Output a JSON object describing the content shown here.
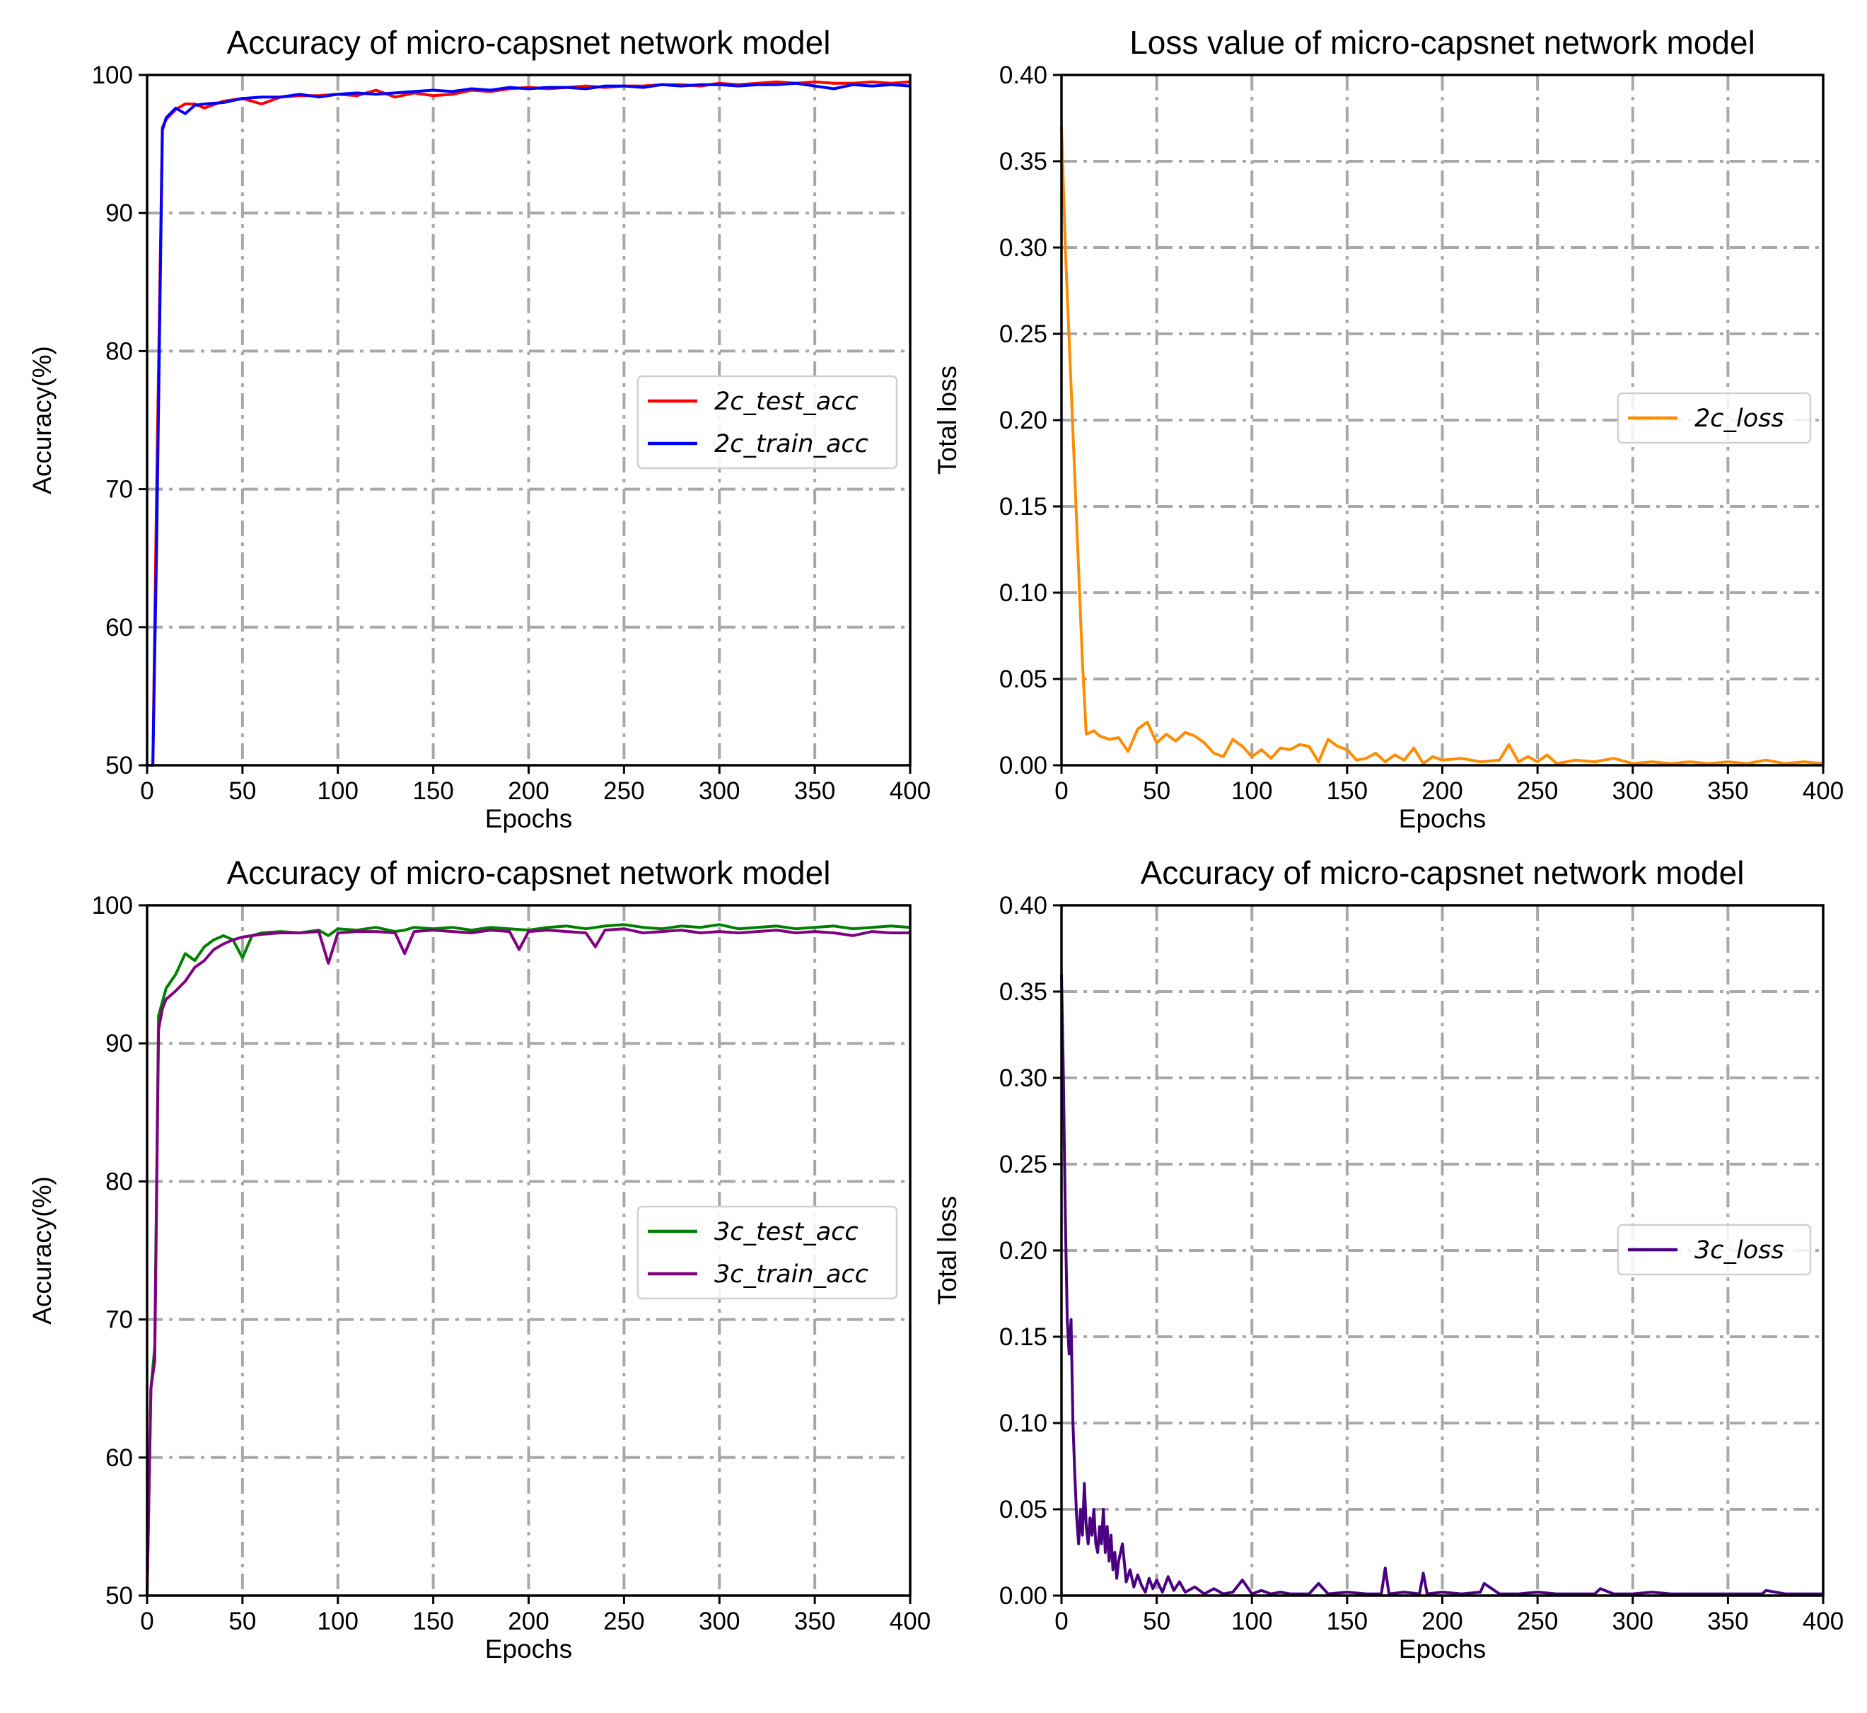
{
  "chart_data": [
    {
      "type": "line",
      "title": "Accuracy of micro-capsnet network model",
      "xlabel": "Epochs",
      "ylabel": "Accuracy(%)",
      "xlim": [
        0,
        400
      ],
      "ylim": [
        50,
        100
      ],
      "xticks": [
        0,
        50,
        100,
        150,
        200,
        250,
        300,
        350,
        400
      ],
      "yticks": [
        50,
        60,
        70,
        80,
        90,
        100
      ],
      "ytick_labels": [
        "50",
        "60",
        "70",
        "80",
        "90",
        "100"
      ],
      "grid": true,
      "legend_position": "center-right",
      "series": [
        {
          "name": "2c_test_acc",
          "color": "#ff0000",
          "x": [
            0,
            3,
            5,
            8,
            10,
            15,
            20,
            25,
            30,
            40,
            50,
            60,
            70,
            80,
            90,
            100,
            110,
            120,
            130,
            140,
            150,
            160,
            170,
            180,
            190,
            200,
            210,
            220,
            230,
            240,
            250,
            260,
            270,
            280,
            290,
            300,
            310,
            320,
            330,
            340,
            350,
            360,
            370,
            380,
            390,
            400
          ],
          "values": [
            50,
            50,
            70,
            96.2,
            96.8,
            97.5,
            97.9,
            97.9,
            97.6,
            98.1,
            98.3,
            97.9,
            98.4,
            98.5,
            98.5,
            98.6,
            98.5,
            98.9,
            98.4,
            98.7,
            98.5,
            98.6,
            98.9,
            98.8,
            99.0,
            99.1,
            99.0,
            99.1,
            99.2,
            99.1,
            99.2,
            99.2,
            99.3,
            99.3,
            99.2,
            99.4,
            99.3,
            99.4,
            99.5,
            99.4,
            99.5,
            99.4,
            99.4,
            99.5,
            99.4,
            99.5
          ]
        },
        {
          "name": "2c_train_acc",
          "color": "#0000ff",
          "x": [
            0,
            3,
            5,
            8,
            10,
            15,
            20,
            25,
            30,
            40,
            50,
            60,
            70,
            80,
            90,
            100,
            110,
            120,
            130,
            140,
            150,
            160,
            170,
            180,
            190,
            200,
            210,
            220,
            230,
            240,
            250,
            260,
            270,
            280,
            290,
            300,
            310,
            320,
            330,
            340,
            350,
            360,
            370,
            380,
            390,
            400
          ],
          "values": [
            50,
            50,
            66,
            96.0,
            96.9,
            97.6,
            97.2,
            97.8,
            97.9,
            98.0,
            98.3,
            98.4,
            98.4,
            98.6,
            98.4,
            98.6,
            98.7,
            98.6,
            98.7,
            98.8,
            98.9,
            98.8,
            99.0,
            98.9,
            99.1,
            99.0,
            99.1,
            99.1,
            99.0,
            99.2,
            99.2,
            99.1,
            99.3,
            99.2,
            99.3,
            99.3,
            99.2,
            99.3,
            99.3,
            99.4,
            99.2,
            99.0,
            99.3,
            99.2,
            99.3,
            99.2
          ]
        }
      ]
    },
    {
      "type": "line",
      "title": "Loss value of micro-capsnet network model",
      "xlabel": "Epochs",
      "ylabel": "Total loss",
      "xlim": [
        0,
        400
      ],
      "ylim": [
        0,
        0.4
      ],
      "xticks": [
        0,
        50,
        100,
        150,
        200,
        250,
        300,
        350,
        400
      ],
      "yticks": [
        0,
        0.05,
        0.1,
        0.15,
        0.2,
        0.25,
        0.3,
        0.35,
        0.4
      ],
      "ytick_labels": [
        "0.00",
        "0.05",
        "0.10",
        "0.15",
        "0.20",
        "0.25",
        "0.30",
        "0.35",
        "0.40"
      ],
      "grid": true,
      "legend_position": "center-right",
      "series": [
        {
          "name": "2c_loss",
          "color": "#ff8c00",
          "x": [
            0,
            2,
            5,
            8,
            11,
            13,
            17,
            20,
            25,
            30,
            35,
            40,
            45,
            50,
            55,
            60,
            65,
            70,
            75,
            80,
            85,
            90,
            95,
            100,
            105,
            110,
            115,
            120,
            125,
            130,
            135,
            140,
            145,
            150,
            155,
            160,
            165,
            170,
            175,
            180,
            185,
            190,
            195,
            200,
            210,
            220,
            230,
            235,
            240,
            245,
            250,
            255,
            260,
            270,
            280,
            290,
            300,
            310,
            320,
            330,
            340,
            350,
            360,
            370,
            380,
            390,
            400
          ],
          "values": [
            0.37,
            0.3,
            0.22,
            0.14,
            0.06,
            0.018,
            0.02,
            0.017,
            0.015,
            0.016,
            0.008,
            0.021,
            0.025,
            0.013,
            0.018,
            0.014,
            0.019,
            0.017,
            0.013,
            0.007,
            0.005,
            0.015,
            0.011,
            0.005,
            0.009,
            0.004,
            0.01,
            0.009,
            0.012,
            0.011,
            0.002,
            0.015,
            0.011,
            0.009,
            0.003,
            0.004,
            0.007,
            0.002,
            0.006,
            0.003,
            0.01,
            0.001,
            0.005,
            0.003,
            0.004,
            0.002,
            0.003,
            0.012,
            0.002,
            0.005,
            0.002,
            0.006,
            0.001,
            0.003,
            0.002,
            0.004,
            0.001,
            0.002,
            0.001,
            0.002,
            0.001,
            0.002,
            0.001,
            0.003,
            0.001,
            0.002,
            0.001
          ]
        }
      ]
    },
    {
      "type": "line",
      "title": "Accuracy of micro-capsnet network model",
      "xlabel": "Epochs",
      "ylabel": "Accuracy(%)",
      "xlim": [
        0,
        400
      ],
      "ylim": [
        50,
        100
      ],
      "xticks": [
        0,
        50,
        100,
        150,
        200,
        250,
        300,
        350,
        400
      ],
      "yticks": [
        50,
        60,
        70,
        80,
        90,
        100
      ],
      "ytick_labels": [
        "50",
        "60",
        "70",
        "80",
        "90",
        "100"
      ],
      "grid": true,
      "legend_position": "center-right",
      "series": [
        {
          "name": "3c_test_acc",
          "color": "#008000",
          "x": [
            0,
            2,
            4,
            6,
            8,
            10,
            15,
            20,
            25,
            30,
            35,
            40,
            45,
            50,
            55,
            60,
            70,
            80,
            90,
            95,
            100,
            110,
            120,
            130,
            135,
            140,
            150,
            160,
            170,
            180,
            190,
            200,
            210,
            220,
            230,
            240,
            250,
            260,
            270,
            280,
            290,
            300,
            310,
            320,
            330,
            340,
            350,
            360,
            370,
            380,
            390,
            400
          ],
          "values": [
            50,
            65,
            68,
            92,
            93,
            94,
            95,
            96.5,
            96.0,
            97.0,
            97.5,
            97.8,
            97.5,
            96.2,
            97.8,
            98.0,
            98.1,
            98.0,
            98.2,
            97.8,
            98.3,
            98.2,
            98.4,
            98.1,
            98.2,
            98.4,
            98.3,
            98.4,
            98.2,
            98.4,
            98.3,
            98.2,
            98.4,
            98.5,
            98.3,
            98.5,
            98.6,
            98.4,
            98.3,
            98.5,
            98.4,
            98.6,
            98.3,
            98.4,
            98.5,
            98.3,
            98.4,
            98.5,
            98.3,
            98.4,
            98.5,
            98.4
          ]
        },
        {
          "name": "3c_train_acc",
          "color": "#800080",
          "x": [
            0,
            2,
            4,
            6,
            8,
            10,
            15,
            20,
            25,
            30,
            35,
            40,
            45,
            50,
            55,
            60,
            70,
            80,
            90,
            95,
            100,
            110,
            120,
            130,
            135,
            140,
            150,
            160,
            170,
            180,
            190,
            195,
            200,
            210,
            220,
            230,
            235,
            240,
            250,
            260,
            270,
            280,
            290,
            300,
            310,
            320,
            330,
            340,
            350,
            360,
            370,
            380,
            390,
            400
          ],
          "values": [
            50,
            65,
            67,
            91,
            92.5,
            93.2,
            93.8,
            94.5,
            95.5,
            96.0,
            96.8,
            97.2,
            97.5,
            97.7,
            97.8,
            97.9,
            98.0,
            98.0,
            98.1,
            95.8,
            98.0,
            98.1,
            98.1,
            98.0,
            96.5,
            98.1,
            98.2,
            98.1,
            98.0,
            98.2,
            98.1,
            96.8,
            98.1,
            98.2,
            98.1,
            98.0,
            97.0,
            98.2,
            98.3,
            98.0,
            98.1,
            98.2,
            98.0,
            98.1,
            98.0,
            98.1,
            98.2,
            98.0,
            98.1,
            98.0,
            97.8,
            98.1,
            98.0,
            98.0
          ]
        }
      ]
    },
    {
      "type": "line",
      "title": "Accuracy of micro-capsnet network model",
      "xlabel": "Epochs",
      "ylabel": "Total loss",
      "xlim": [
        0,
        400
      ],
      "ylim": [
        0,
        0.4
      ],
      "xticks": [
        0,
        50,
        100,
        150,
        200,
        250,
        300,
        350,
        400
      ],
      "yticks": [
        0,
        0.05,
        0.1,
        0.15,
        0.2,
        0.25,
        0.3,
        0.35,
        0.4
      ],
      "ytick_labels": [
        "0.00",
        "0.05",
        "0.10",
        "0.15",
        "0.20",
        "0.25",
        "0.30",
        "0.35",
        "0.40"
      ],
      "grid": true,
      "legend_position": "center-right",
      "series": [
        {
          "name": "3c_loss",
          "color": "#4b0082",
          "x": [
            0,
            1,
            2,
            3,
            4,
            5,
            6,
            7,
            8,
            9,
            10,
            11,
            12,
            13,
            14,
            15,
            16,
            17,
            18,
            19,
            20,
            21,
            22,
            23,
            24,
            25,
            26,
            27,
            28,
            29,
            30,
            32,
            34,
            36,
            38,
            40,
            42,
            44,
            46,
            48,
            50,
            53,
            56,
            59,
            62,
            65,
            70,
            75,
            80,
            85,
            90,
            95,
            100,
            105,
            110,
            115,
            120,
            130,
            135,
            140,
            150,
            160,
            168,
            170,
            172,
            180,
            188,
            190,
            192,
            200,
            210,
            220,
            222,
            230,
            240,
            250,
            260,
            270,
            280,
            283,
            290,
            300,
            310,
            320,
            330,
            340,
            350,
            360,
            368,
            370,
            380,
            390,
            400
          ],
          "values": [
            0.36,
            0.3,
            0.22,
            0.16,
            0.14,
            0.16,
            0.1,
            0.07,
            0.045,
            0.03,
            0.05,
            0.035,
            0.065,
            0.04,
            0.03,
            0.045,
            0.035,
            0.05,
            0.03,
            0.025,
            0.04,
            0.03,
            0.05,
            0.025,
            0.04,
            0.02,
            0.035,
            0.015,
            0.025,
            0.01,
            0.02,
            0.03,
            0.008,
            0.015,
            0.005,
            0.012,
            0.006,
            0.002,
            0.01,
            0.004,
            0.009,
            0.002,
            0.011,
            0.003,
            0.008,
            0.002,
            0.005,
            0.001,
            0.004,
            0.001,
            0.002,
            0.009,
            0.001,
            0.003,
            0.001,
            0.002,
            0.001,
            0.001,
            0.007,
            0.001,
            0.002,
            0.001,
            0.001,
            0.016,
            0.001,
            0.002,
            0.001,
            0.013,
            0.001,
            0.002,
            0.001,
            0.002,
            0.007,
            0.001,
            0.001,
            0.002,
            0.001,
            0.001,
            0.001,
            0.004,
            0.001,
            0.001,
            0.002,
            0.001,
            0.001,
            0.001,
            0.001,
            0.001,
            0.001,
            0.003,
            0.001,
            0.001,
            0.001
          ]
        }
      ]
    }
  ]
}
